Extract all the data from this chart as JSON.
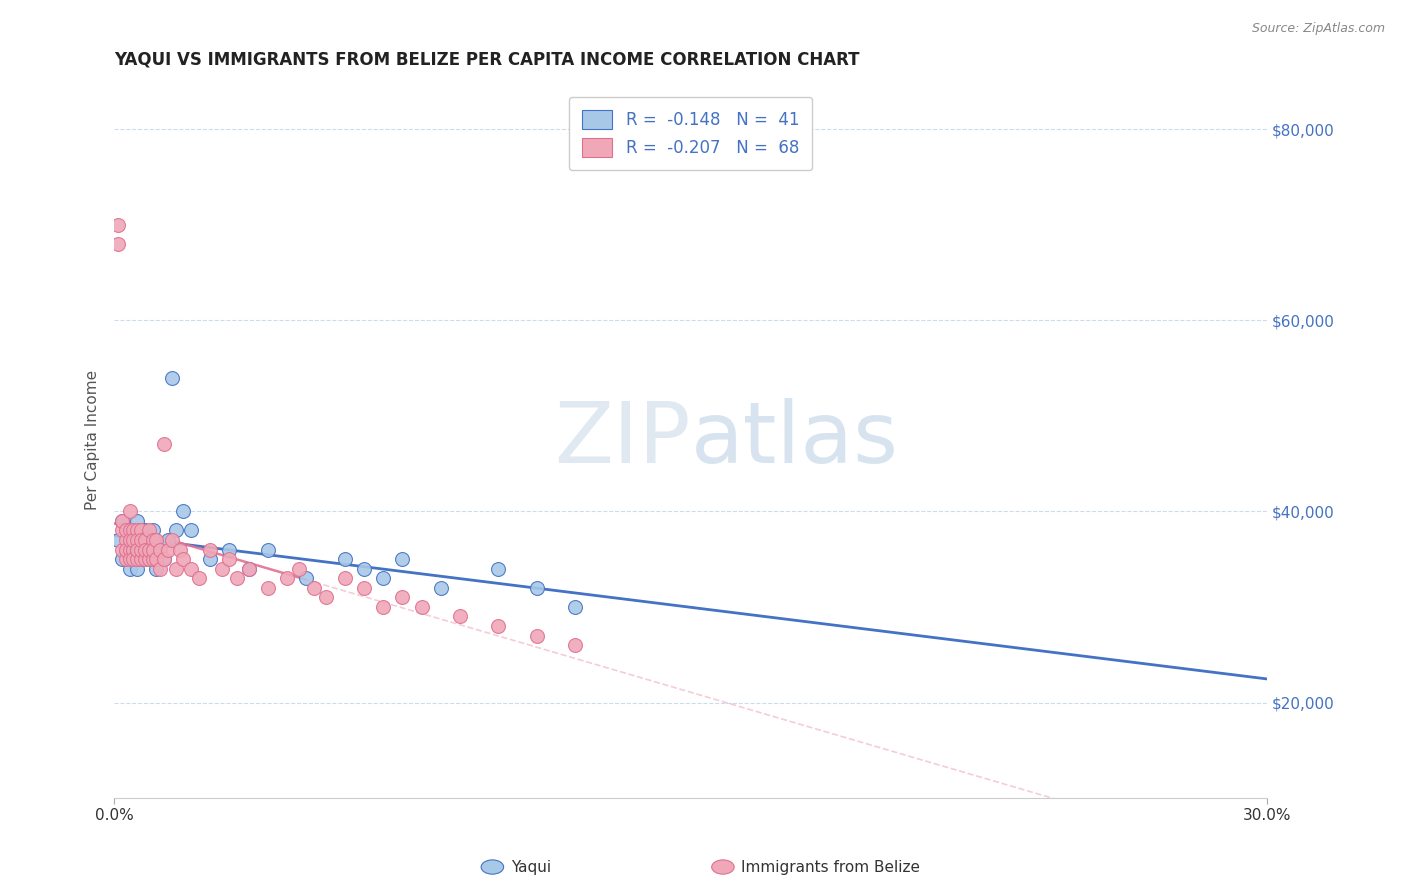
{
  "title": "YAQUI VS IMMIGRANTS FROM BELIZE PER CAPITA INCOME CORRELATION CHART",
  "source": "Source: ZipAtlas.com",
  "xlabel_yaqui": "Yaqui",
  "xlabel_belize": "Immigrants from Belize",
  "ylabel": "Per Capita Income",
  "xlim": [
    0.0,
    0.3
  ],
  "ylim": [
    10000,
    85000
  ],
  "yticks": [
    20000,
    40000,
    60000,
    80000
  ],
  "ytick_labels": [
    "$20,000",
    "$40,000",
    "$60,000",
    "$80,000"
  ],
  "xticks": [
    0.0,
    0.3
  ],
  "xtick_labels": [
    "0.0%",
    "30.0%"
  ],
  "legend_R_yaqui": "-0.148",
  "legend_N_yaqui": "41",
  "legend_R_belize": "-0.207",
  "legend_N_belize": "68",
  "color_yaqui": "#a8c8e8",
  "color_belize": "#f0a8b8",
  "color_yaqui_line": "#4472c4",
  "color_belize_line": "#e07090",
  "watermark_zip": "#c8dff0",
  "watermark_atlas": "#a8c8e0",
  "background_color": "#ffffff",
  "grid_color": "#c8d8e8",
  "yaqui_x": [
    0.001,
    0.002,
    0.002,
    0.003,
    0.003,
    0.004,
    0.004,
    0.005,
    0.005,
    0.005,
    0.006,
    0.006,
    0.007,
    0.007,
    0.008,
    0.008,
    0.009,
    0.009,
    0.01,
    0.01,
    0.011,
    0.012,
    0.013,
    0.014,
    0.015,
    0.016,
    0.018,
    0.02,
    0.025,
    0.03,
    0.035,
    0.04,
    0.05,
    0.06,
    0.065,
    0.07,
    0.075,
    0.085,
    0.1,
    0.11,
    0.12
  ],
  "yaqui_y": [
    37000,
    35000,
    39000,
    36000,
    38000,
    34000,
    37000,
    36000,
    38000,
    35000,
    39000,
    34000,
    37000,
    35000,
    36000,
    38000,
    35000,
    37000,
    36000,
    38000,
    34000,
    36000,
    35000,
    37000,
    54000,
    38000,
    40000,
    38000,
    35000,
    36000,
    34000,
    36000,
    33000,
    35000,
    34000,
    33000,
    35000,
    32000,
    34000,
    32000,
    30000
  ],
  "belize_x": [
    0.001,
    0.001,
    0.002,
    0.002,
    0.002,
    0.003,
    0.003,
    0.003,
    0.003,
    0.004,
    0.004,
    0.004,
    0.004,
    0.004,
    0.005,
    0.005,
    0.005,
    0.005,
    0.006,
    0.006,
    0.006,
    0.006,
    0.006,
    0.007,
    0.007,
    0.007,
    0.007,
    0.008,
    0.008,
    0.008,
    0.009,
    0.009,
    0.009,
    0.01,
    0.01,
    0.01,
    0.011,
    0.011,
    0.012,
    0.012,
    0.013,
    0.013,
    0.014,
    0.015,
    0.016,
    0.017,
    0.018,
    0.02,
    0.022,
    0.025,
    0.028,
    0.03,
    0.032,
    0.035,
    0.04,
    0.045,
    0.048,
    0.052,
    0.055,
    0.06,
    0.065,
    0.07,
    0.075,
    0.08,
    0.09,
    0.1,
    0.11,
    0.12
  ],
  "belize_y": [
    70000,
    68000,
    36000,
    38000,
    39000,
    37000,
    35000,
    38000,
    36000,
    38000,
    36000,
    40000,
    37000,
    35000,
    38000,
    36000,
    35000,
    37000,
    38000,
    36000,
    35000,
    37000,
    36000,
    35000,
    38000,
    36000,
    37000,
    35000,
    37000,
    36000,
    35000,
    38000,
    36000,
    35000,
    37000,
    36000,
    35000,
    37000,
    36000,
    34000,
    47000,
    35000,
    36000,
    37000,
    34000,
    36000,
    35000,
    34000,
    33000,
    36000,
    34000,
    35000,
    33000,
    34000,
    32000,
    33000,
    34000,
    32000,
    31000,
    33000,
    32000,
    30000,
    31000,
    30000,
    29000,
    28000,
    27000,
    26000
  ]
}
